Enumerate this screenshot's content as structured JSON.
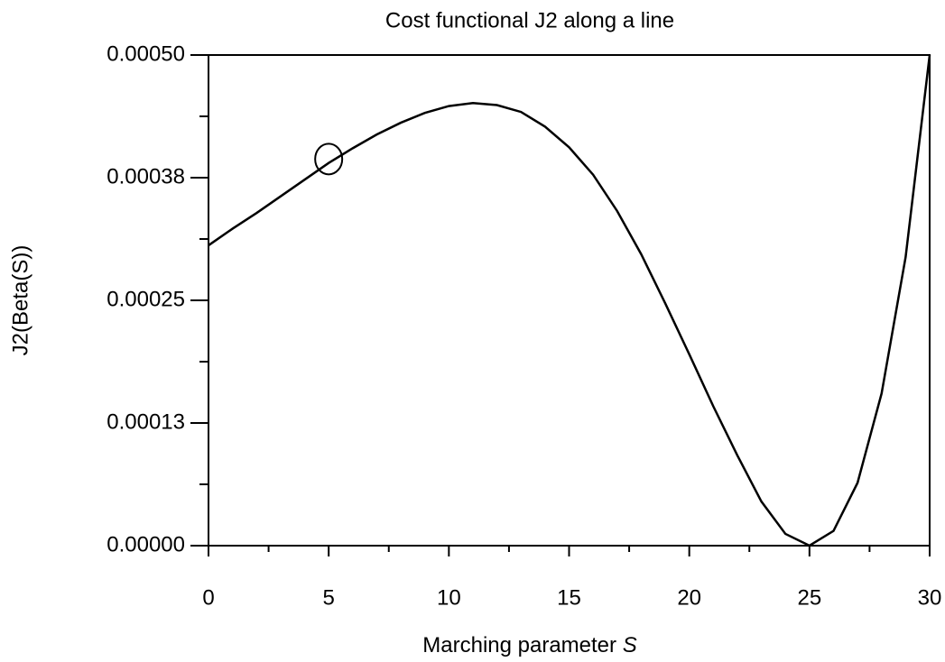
{
  "chart_data": {
    "type": "line",
    "title": "Cost functional J2 along a line",
    "xlabel": "Marching parameter",
    "xlabel_symbol": "S",
    "ylabel": "J2(Beta(S))",
    "x": [
      0,
      1,
      2,
      3,
      4,
      5,
      6,
      7,
      8,
      9,
      10,
      11,
      12,
      13,
      14,
      15,
      16,
      17,
      18,
      19,
      20,
      21,
      22,
      23,
      24,
      25,
      26,
      27,
      28,
      29,
      30
    ],
    "series": [
      {
        "name": "J2",
        "color": "#000000",
        "values": [
          0.000306,
          0.000323,
          0.000339,
          0.000356,
          0.000373,
          0.00039,
          0.000405,
          0.000419,
          0.000431,
          0.000441,
          0.000448,
          0.000451,
          0.000449,
          0.000442,
          0.000427,
          0.000406,
          0.000378,
          0.000341,
          0.000297,
          0.000247,
          0.000195,
          0.000142,
          9.2e-05,
          4.5e-05,
          1.2e-05,
          0,
          1.5e-05,
          6.4e-05,
          0.000155,
          0.000294,
          0.0005
        ]
      }
    ],
    "marker": {
      "x": 5,
      "y": 0.000394
    },
    "xlim": [
      0,
      30
    ],
    "ylim": [
      0,
      0.0005
    ],
    "xticks": [
      0,
      5,
      10,
      15,
      20,
      25,
      30
    ],
    "xticks_minor": [
      2.5,
      7.5,
      12.5,
      17.5,
      22.5,
      27.5
    ],
    "yticks": [
      {
        "value": 0,
        "label": "0.00000"
      },
      {
        "value": 0.000125,
        "label": "0.00013"
      },
      {
        "value": 0.00025,
        "label": "0.00025"
      },
      {
        "value": 0.000375,
        "label": "0.00038"
      },
      {
        "value": 0.0005,
        "label": "0.00050"
      }
    ],
    "yticks_minor": [
      6.25e-05,
      0.0001875,
      0.0003125,
      0.0004375
    ]
  }
}
